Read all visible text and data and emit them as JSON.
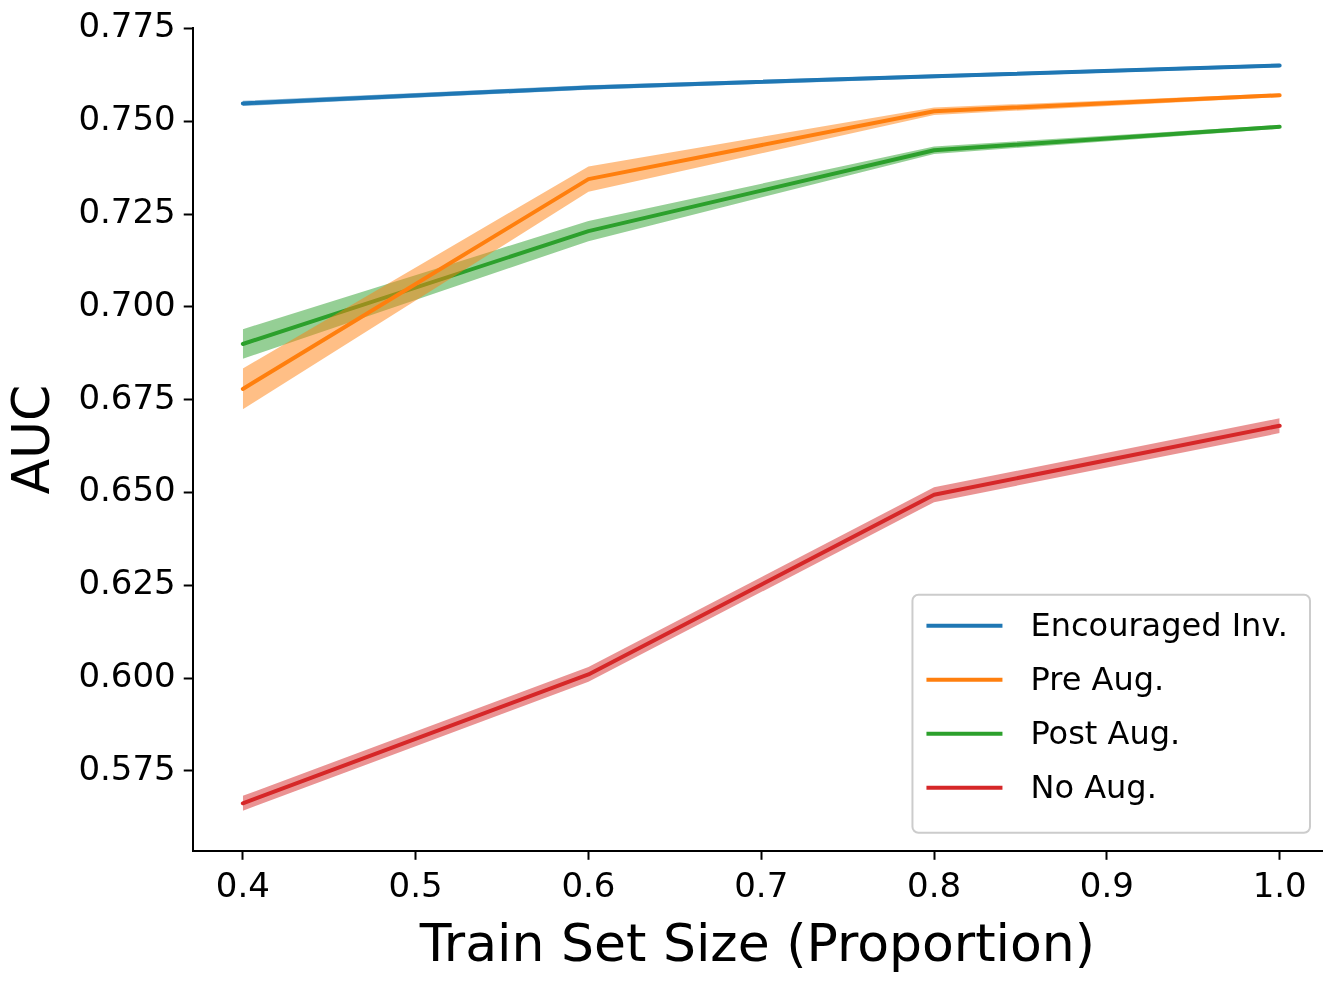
{
  "chart_data": {
    "type": "line",
    "xlabel": "Train Set Size (Proportion)",
    "ylabel": "AUC",
    "x": [
      0.4,
      0.6,
      0.8,
      1.0
    ],
    "xlim": [
      0.371,
      1.0245
    ],
    "xticks": [
      0.4,
      0.5,
      0.6,
      0.7,
      0.8,
      0.9,
      {
        "value": 1.0,
        "label": "1.0"
      }
    ],
    "ylim": [
      0.5535,
      0.775
    ],
    "yticks": [
      0.575,
      {
        "value": 0.6,
        "label": "0.600"
      },
      0.625,
      {
        "value": 0.65,
        "label": "0.650"
      },
      0.675,
      {
        "value": 0.7,
        "label": "0.700"
      },
      0.725,
      {
        "value": 0.75,
        "label": "0.750"
      },
      0.775
    ],
    "grid": false,
    "legend": "bottom right",
    "marker": "none",
    "line_style": "solid",
    "series": [
      {
        "name": "Encouraged Inv.",
        "color": "#1f77b4",
        "values": [
          0.7548,
          0.7591,
          0.7621,
          0.765
        ],
        "lower": [
          0.7541,
          0.7585,
          0.7616,
          0.7645
        ],
        "upper": [
          0.7555,
          0.7597,
          0.7626,
          0.7655
        ]
      },
      {
        "name": "Pre Aug.",
        "color": "#ff7f0e",
        "values": [
          0.6779,
          0.7344,
          0.7527,
          0.757
        ],
        "lower": [
          0.6724,
          0.731,
          0.7517,
          0.7565
        ],
        "upper": [
          0.6834,
          0.7378,
          0.7537,
          0.7575
        ]
      },
      {
        "name": "Post Aug.",
        "color": "#2ca02c",
        "values": [
          0.69,
          0.7204,
          0.7422,
          0.7485
        ],
        "lower": [
          0.686,
          0.7177,
          0.7412,
          0.748
        ],
        "upper": [
          0.694,
          0.7231,
          0.7432,
          0.749
        ]
      },
      {
        "name": "No Aug.",
        "color": "#d62728",
        "values": [
          0.5663,
          0.601,
          0.6494,
          0.668
        ],
        "lower": [
          0.5643,
          0.599,
          0.6474,
          0.666
        ],
        "upper": [
          0.5683,
          0.603,
          0.6514,
          0.67
        ]
      }
    ]
  }
}
